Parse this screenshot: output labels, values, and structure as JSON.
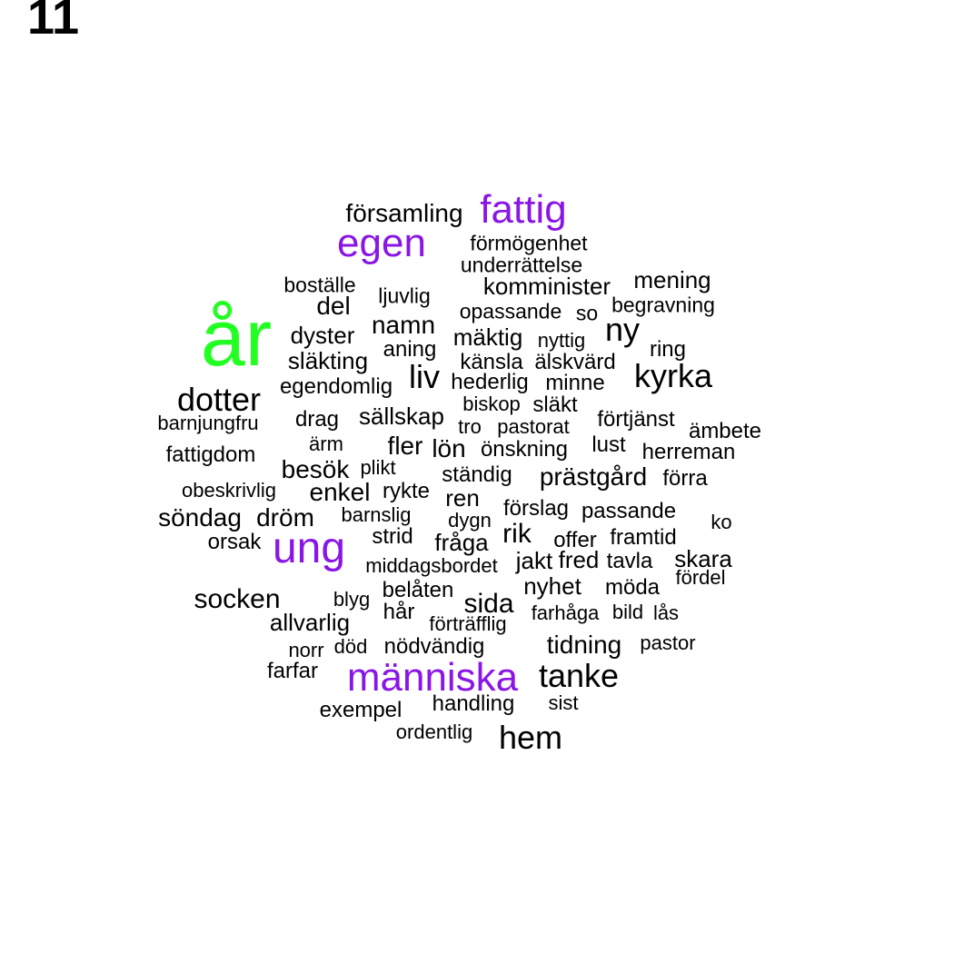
{
  "figure_label": "11",
  "colors": {
    "large": "#22ff22",
    "medium": "#8a16e6",
    "small": "#000000"
  },
  "words": [
    {
      "text": "år",
      "weight": 4
    },
    {
      "text": "ung",
      "weight": 3
    },
    {
      "text": "människa",
      "weight": 3
    },
    {
      "text": "egen",
      "weight": 3
    },
    {
      "text": "fattig",
      "weight": 3
    },
    {
      "text": "dotter",
      "weight": 2
    },
    {
      "text": "tanke",
      "weight": 2
    },
    {
      "text": "kyrka",
      "weight": 2
    },
    {
      "text": "hem",
      "weight": 2
    },
    {
      "text": "ny",
      "weight": 2
    },
    {
      "text": "liv",
      "weight": 2
    },
    {
      "text": "socken",
      "weight": 1.6
    },
    {
      "text": "rik",
      "weight": 1.6
    },
    {
      "text": "namn",
      "weight": 1.6
    },
    {
      "text": "del",
      "weight": 1.6
    },
    {
      "text": "församling",
      "weight": 1.4
    },
    {
      "text": "förmögenhet",
      "weight": 1
    },
    {
      "text": "underrättelse",
      "weight": 1
    },
    {
      "text": "boställe",
      "weight": 1
    },
    {
      "text": "ljuvlig",
      "weight": 1
    },
    {
      "text": "komminister",
      "weight": 1.2
    },
    {
      "text": "mening",
      "weight": 1.2
    },
    {
      "text": "begravning",
      "weight": 1
    },
    {
      "text": "opassande",
      "weight": 1
    },
    {
      "text": "so",
      "weight": 1
    },
    {
      "text": "dyster",
      "weight": 1.2
    },
    {
      "text": "mäktig",
      "weight": 1.2
    },
    {
      "text": "nyttig",
      "weight": 1
    },
    {
      "text": "aning",
      "weight": 1.1
    },
    {
      "text": "ring",
      "weight": 1.1
    },
    {
      "text": "släkting",
      "weight": 1.2
    },
    {
      "text": "känsla",
      "weight": 1.1
    },
    {
      "text": "älskvärd",
      "weight": 1.1
    },
    {
      "text": "egendomlig",
      "weight": 1.1
    },
    {
      "text": "hederlig",
      "weight": 1.1
    },
    {
      "text": "minne",
      "weight": 1.1
    },
    {
      "text": "biskop",
      "weight": 1
    },
    {
      "text": "släkt",
      "weight": 1.1
    },
    {
      "text": "barnjungfru",
      "weight": 1
    },
    {
      "text": "drag",
      "weight": 1.1
    },
    {
      "text": "sällskap",
      "weight": 1.2
    },
    {
      "text": "tro",
      "weight": 1
    },
    {
      "text": "pastorat",
      "weight": 1
    },
    {
      "text": "förtjänst",
      "weight": 1.1
    },
    {
      "text": "ämbete",
      "weight": 1.1
    },
    {
      "text": "ärm",
      "weight": 1
    },
    {
      "text": "fler",
      "weight": 1.3
    },
    {
      "text": "lön",
      "weight": 1.3
    },
    {
      "text": "önskning",
      "weight": 1.1
    },
    {
      "text": "lust",
      "weight": 1.1
    },
    {
      "text": "herreman",
      "weight": 1.1
    },
    {
      "text": "fattigdom",
      "weight": 1.1
    },
    {
      "text": "besök",
      "weight": 1.3
    },
    {
      "text": "plikt",
      "weight": 1
    },
    {
      "text": "ständig",
      "weight": 1.1
    },
    {
      "text": "prästgård",
      "weight": 1.3
    },
    {
      "text": "förra",
      "weight": 1.1
    },
    {
      "text": "obeskrivlig",
      "weight": 1
    },
    {
      "text": "enkel",
      "weight": 1.3
    },
    {
      "text": "rykte",
      "weight": 1.1
    },
    {
      "text": "ren",
      "weight": 1.2
    },
    {
      "text": "förslag",
      "weight": 1.1
    },
    {
      "text": "passande",
      "weight": 1.1
    },
    {
      "text": "söndag",
      "weight": 1.3
    },
    {
      "text": "dröm",
      "weight": 1.3
    },
    {
      "text": "barnslig",
      "weight": 1
    },
    {
      "text": "dygn",
      "weight": 1
    },
    {
      "text": "ko",
      "weight": 1
    },
    {
      "text": "orsak",
      "weight": 1.1
    },
    {
      "text": "strid",
      "weight": 1.1
    },
    {
      "text": "fråga",
      "weight": 1.2
    },
    {
      "text": "offer",
      "weight": 1.1
    },
    {
      "text": "framtid",
      "weight": 1.1
    },
    {
      "text": "middagsbordet",
      "weight": 1
    },
    {
      "text": "jakt",
      "weight": 1.2
    },
    {
      "text": "fred",
      "weight": 1.2
    },
    {
      "text": "tavla",
      "weight": 1.1
    },
    {
      "text": "skara",
      "weight": 1.2
    },
    {
      "text": "fördel",
      "weight": 1
    },
    {
      "text": "belåten",
      "weight": 1.1
    },
    {
      "text": "nyhet",
      "weight": 1.2
    },
    {
      "text": "möda",
      "weight": 1.1
    },
    {
      "text": "blyg",
      "weight": 1
    },
    {
      "text": "hår",
      "weight": 1.1
    },
    {
      "text": "sida",
      "weight": 1.3
    },
    {
      "text": "allvarlig",
      "weight": 1.2
    },
    {
      "text": "förträfflig",
      "weight": 1
    },
    {
      "text": "farhåga",
      "weight": 1
    },
    {
      "text": "bild",
      "weight": 1
    },
    {
      "text": "lås",
      "weight": 1
    },
    {
      "text": "norr",
      "weight": 1
    },
    {
      "text": "död",
      "weight": 1
    },
    {
      "text": "nödvändig",
      "weight": 1.1
    },
    {
      "text": "tidning",
      "weight": 1.3
    },
    {
      "text": "pastor",
      "weight": 1
    },
    {
      "text": "farfar",
      "weight": 1.1
    },
    {
      "text": "handling",
      "weight": 1.2
    },
    {
      "text": "sist",
      "weight": 1
    },
    {
      "text": "exempel",
      "weight": 1.1
    },
    {
      "text": "ordentlig",
      "weight": 1
    }
  ]
}
